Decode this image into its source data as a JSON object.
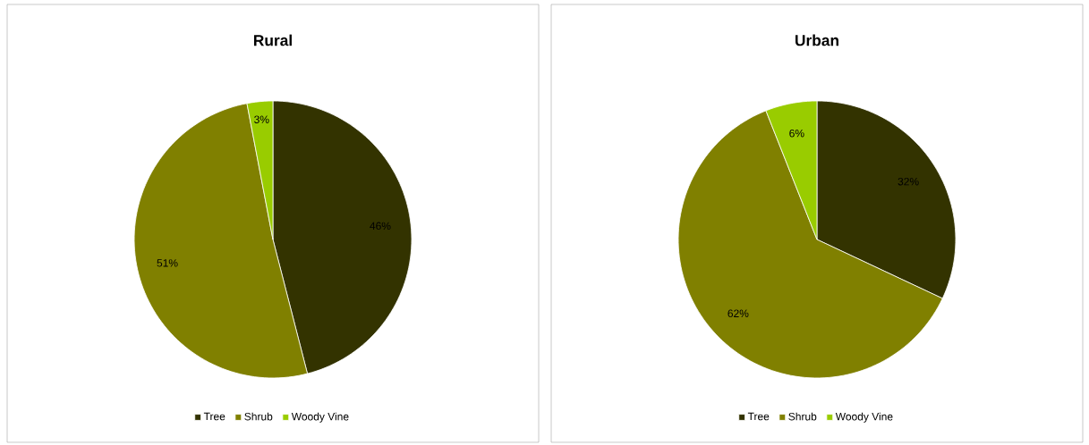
{
  "chart_data": [
    {
      "type": "pie",
      "title": "Rural",
      "categories": [
        "Tree",
        "Shrub",
        "Woody Vine"
      ],
      "values": [
        46,
        51,
        3
      ],
      "colors": [
        "#333300",
        "#808000",
        "#99cc00"
      ],
      "value_labels": [
        "46%",
        "51%",
        "3%"
      ],
      "legend": "bottom"
    },
    {
      "type": "pie",
      "title": "Urban",
      "categories": [
        "Tree",
        "Shrub",
        "Woody Vine"
      ],
      "values": [
        32,
        62,
        6
      ],
      "colors": [
        "#333300",
        "#808000",
        "#99cc00"
      ],
      "value_labels": [
        "32%",
        "62%",
        "6%"
      ],
      "legend": "bottom"
    }
  ]
}
